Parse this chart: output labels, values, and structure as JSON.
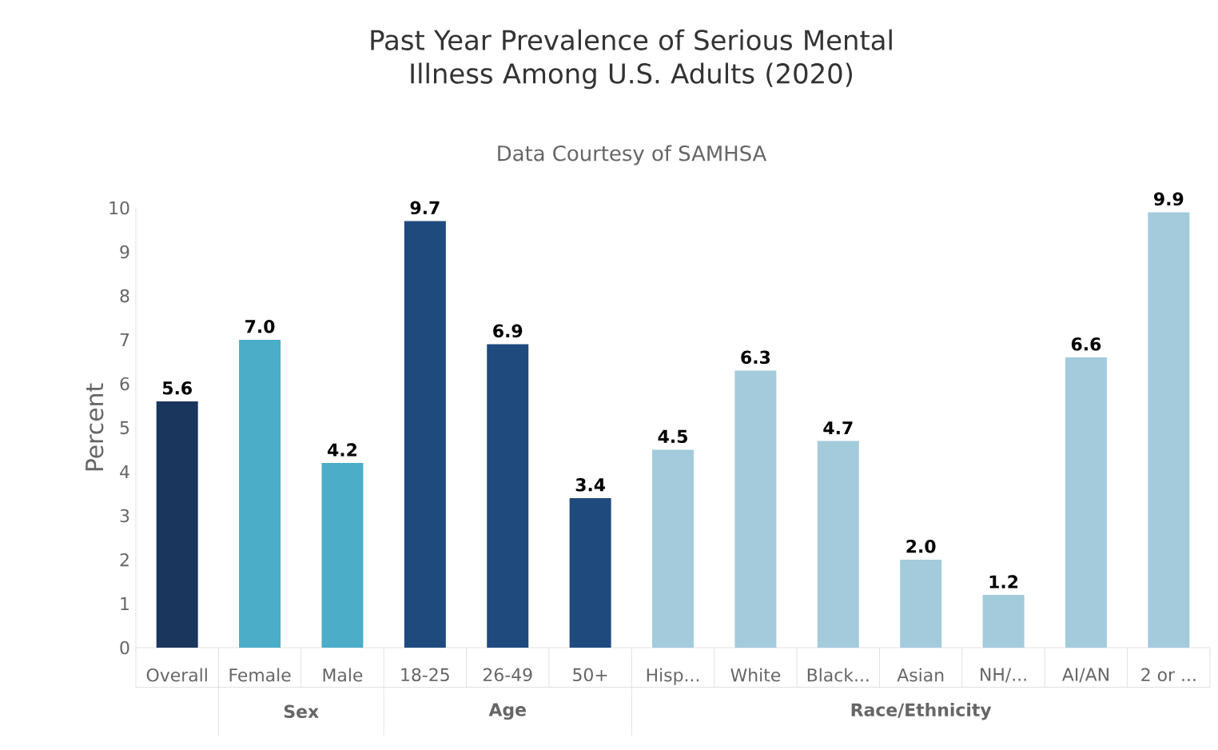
{
  "chart_data": {
    "type": "bar",
    "title": "Past Year Prevalence of Serious Mental Illness Among U.S. Adults (2020)",
    "subtitle": "Data Courtesy of SAMHSA",
    "ylabel": "Percent",
    "categories": [
      "Overall",
      "Female",
      "Male",
      "18-25",
      "26-49",
      "50+",
      "Hisp...",
      "White",
      "Black...",
      "Asian",
      "NH/...",
      "AI/AN",
      "2 or ..."
    ],
    "values": [
      5.6,
      7.0,
      4.2,
      9.7,
      6.9,
      3.4,
      4.5,
      6.3,
      4.7,
      2.0,
      1.2,
      6.6,
      9.9
    ],
    "colors": [
      "#1b365d",
      "#4badc8",
      "#4badc8",
      "#1f4a7e",
      "#1f4a7e",
      "#1f4a7e",
      "#a3cbdc",
      "#a3cbdc",
      "#a3cbdc",
      "#a3cbdc",
      "#a3cbdc",
      "#a3cbdc",
      "#a3cbdc"
    ],
    "value_labels": [
      "5.6",
      "7.0",
      "4.2",
      "9.7",
      "6.9",
      "3.4",
      "4.5",
      "6.3",
      "4.7",
      "2.0",
      "1.2",
      "6.6",
      "9.9"
    ],
    "ylim": [
      0,
      10
    ],
    "yticks": [
      0,
      1,
      2,
      3,
      4,
      5,
      6,
      7,
      8,
      9,
      10
    ],
    "grid": false,
    "annotations": [
      "Sex",
      "Age",
      "Race/Ethnicity"
    ]
  }
}
